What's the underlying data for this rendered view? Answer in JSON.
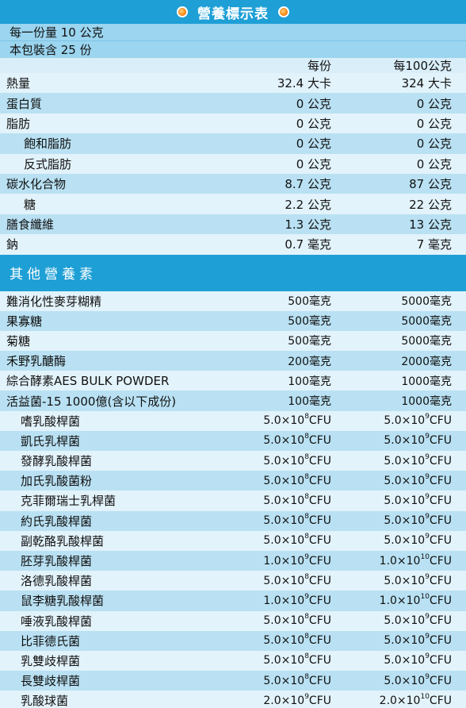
{
  "title": "營養標示表",
  "serving_size": "每一份量 10 公克",
  "servings": "本包裝含 25 份",
  "columns": {
    "per_serving": "每份",
    "per_100g": "每100公克"
  },
  "nutrients": [
    {
      "name": "熱量",
      "per_serving": "32.4 大卡",
      "per_100g": "324 大卡",
      "indent": false
    },
    {
      "name": "蛋白質",
      "per_serving": "0 公克",
      "per_100g": "0 公克",
      "indent": false
    },
    {
      "name": "脂肪",
      "per_serving": "0 公克",
      "per_100g": "0 公克",
      "indent": false
    },
    {
      "name": "飽和脂肪",
      "per_serving": "0 公克",
      "per_100g": "0 公克",
      "indent": true
    },
    {
      "name": "反式脂肪",
      "per_serving": "0 公克",
      "per_100g": "0 公克",
      "indent": true
    },
    {
      "name": "碳水化合物",
      "per_serving": "8.7 公克",
      "per_100g": "87 公克",
      "indent": false
    },
    {
      "name": "糖",
      "per_serving": "2.2 公克",
      "per_100g": "22 公克",
      "indent": true
    },
    {
      "name": "膳食纖維",
      "per_serving": "1.3 公克",
      "per_100g": "13 公克",
      "indent": false
    },
    {
      "name": "鈉",
      "per_serving": "0.7 毫克",
      "per_100g": "7 毫克",
      "indent": false
    }
  ],
  "other_title": "其他營養素",
  "others": [
    {
      "name": "難消化性麥芽糊精",
      "per_serving": "500毫克",
      "per_100g": "5000毫克"
    },
    {
      "name": "果寡糖",
      "per_serving": "500毫克",
      "per_100g": "5000毫克"
    },
    {
      "name": "菊糖",
      "per_serving": "500毫克",
      "per_100g": "5000毫克"
    },
    {
      "name": "禾野乳醣酶",
      "per_serving": "200毫克",
      "per_100g": "2000毫克"
    },
    {
      "name": "綜合酵素AES BULK POWDER",
      "per_serving": "100毫克",
      "per_100g": "1000毫克"
    },
    {
      "name": "活益菌-15 1000億(含以下成份)",
      "per_serving": "100毫克",
      "per_100g": "1000毫克"
    }
  ],
  "probiotics": [
    {
      "name": "嗜乳酸桿菌",
      "s_base": "5.0×10",
      "s_exp": "8",
      "s_unit": "CFU",
      "h_base": "5.0×10",
      "h_exp": "9",
      "h_unit": "CFU"
    },
    {
      "name": "凱氏乳桿菌",
      "s_base": "5.0×10",
      "s_exp": "8",
      "s_unit": "CFU",
      "h_base": "5.0×10",
      "h_exp": "9",
      "h_unit": "CFU"
    },
    {
      "name": "發酵乳酸桿菌",
      "s_base": "5.0×10",
      "s_exp": "8",
      "s_unit": "CFU",
      "h_base": "5.0×10",
      "h_exp": "9",
      "h_unit": "CFU"
    },
    {
      "name": "加氏乳酸菌粉",
      "s_base": "5.0×10",
      "s_exp": "8",
      "s_unit": "CFU",
      "h_base": "5.0×10",
      "h_exp": "9",
      "h_unit": "CFU"
    },
    {
      "name": "克菲爾瑞士乳桿菌",
      "s_base": "5.0×10",
      "s_exp": "8",
      "s_unit": "CFU",
      "h_base": "5.0×10",
      "h_exp": "9",
      "h_unit": "CFU"
    },
    {
      "name": "約氏乳酸桿菌",
      "s_base": "5.0×10",
      "s_exp": "8",
      "s_unit": "CFU",
      "h_base": "5.0×10",
      "h_exp": "9",
      "h_unit": "CFU"
    },
    {
      "name": "副乾酪乳酸桿菌",
      "s_base": "5.0×10",
      "s_exp": "8",
      "s_unit": "CFU",
      "h_base": "5.0×10",
      "h_exp": "9",
      "h_unit": "CFU"
    },
    {
      "name": "胚芽乳酸桿菌",
      "s_base": "1.0×10",
      "s_exp": "9",
      "s_unit": "CFU",
      "h_base": "1.0×10",
      "h_exp": "10",
      "h_unit": "CFU"
    },
    {
      "name": "洛德乳酸桿菌",
      "s_base": "5.0×10",
      "s_exp": "8",
      "s_unit": "CFU",
      "h_base": "5.0×10",
      "h_exp": "9",
      "h_unit": "CFU"
    },
    {
      "name": "鼠李糖乳酸桿菌",
      "s_base": "1.0×10",
      "s_exp": "9",
      "s_unit": "CFU",
      "h_base": "1.0×10",
      "h_exp": "10",
      "h_unit": "CFU"
    },
    {
      "name": "唾液乳酸桿菌",
      "s_base": "5.0×10",
      "s_exp": "8",
      "s_unit": "CFU",
      "h_base": "5.0×10",
      "h_exp": "9",
      "h_unit": "CFU"
    },
    {
      "name": "比菲德氏菌",
      "s_base": "5.0×10",
      "s_exp": "8",
      "s_unit": "CFU",
      "h_base": "5.0×10",
      "h_exp": "9",
      "h_unit": "CFU"
    },
    {
      "name": "乳雙歧桿菌",
      "s_base": "5.0×10",
      "s_exp": "8",
      "s_unit": "CFU",
      "h_base": "5.0×10",
      "h_exp": "9",
      "h_unit": "CFU"
    },
    {
      "name": "長雙歧桿菌",
      "s_base": "5.0×10",
      "s_exp": "8",
      "s_unit": "CFU",
      "h_base": "5.0×10",
      "h_exp": "9",
      "h_unit": "CFU"
    },
    {
      "name": "乳酸球菌",
      "s_base": "2.0×10",
      "s_exp": "9",
      "s_unit": "CFU",
      "h_base": "2.0×10",
      "h_exp": "10",
      "h_unit": "CFU"
    }
  ],
  "colors": {
    "accent": "#1e9fd6",
    "row_light": "#e3f3fb",
    "row_dark": "#b9e1f3"
  }
}
